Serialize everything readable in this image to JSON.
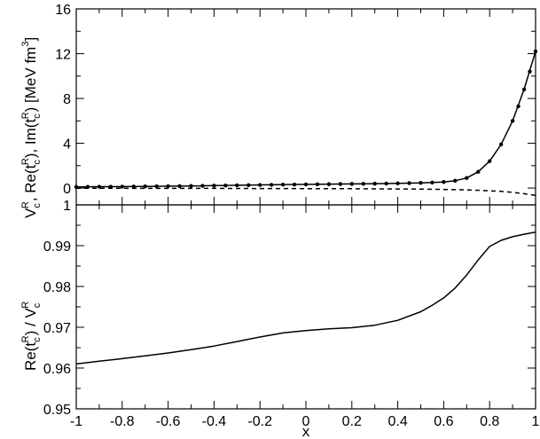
{
  "chart_data": [
    {
      "type": "line",
      "panel": "top",
      "ylabel": "V_c^R, Re(t_c^R), Im(t_c^R) [MeV fm^3]",
      "ylabel_parts": {
        "v": "V",
        "v_sub": "c",
        "v_sup": "R",
        "sep1": ", Re(t",
        "t1_sub": "c",
        "t1_sup": "R",
        "sep2": "), Im(t",
        "t2_sub": "c",
        "t2_sup": "R",
        "unit": ") [MeV fm",
        "unit_sup": "3",
        "close": "]"
      },
      "xlim": [
        -1,
        1
      ],
      "ylim": [
        -1.5,
        16
      ],
      "x_ticks": [
        -1,
        -0.8,
        -0.6,
        -0.4,
        -0.2,
        0,
        0.2,
        0.4,
        0.6,
        0.8,
        1
      ],
      "y_ticks": [
        0,
        4,
        8,
        12,
        16
      ],
      "y_tick_labels": [
        "0",
        "4",
        "8",
        "12",
        "16"
      ],
      "series": [
        {
          "style": "solid",
          "x": [
            -1,
            -0.9,
            -0.8,
            -0.7,
            -0.6,
            -0.5,
            -0.4,
            -0.3,
            -0.2,
            -0.1,
            0,
            0.1,
            0.2,
            0.3,
            0.4,
            0.5,
            0.6,
            0.65,
            0.7,
            0.75,
            0.8,
            0.85,
            0.9,
            0.95,
            1
          ],
          "y": [
            0.1,
            0.12,
            0.13,
            0.15,
            0.17,
            0.19,
            0.22,
            0.25,
            0.28,
            0.31,
            0.33,
            0.35,
            0.37,
            0.39,
            0.42,
            0.46,
            0.54,
            0.65,
            0.9,
            1.45,
            2.4,
            3.9,
            6.0,
            8.8,
            12.2
          ]
        },
        {
          "style": "dots",
          "x": [
            -1,
            -0.95,
            -0.9,
            -0.85,
            -0.8,
            -0.75,
            -0.7,
            -0.65,
            -0.6,
            -0.55,
            -0.5,
            -0.45,
            -0.4,
            -0.35,
            -0.3,
            -0.25,
            -0.2,
            -0.15,
            -0.1,
            -0.05,
            0,
            0.05,
            0.1,
            0.15,
            0.2,
            0.25,
            0.3,
            0.35,
            0.4,
            0.45,
            0.5,
            0.55,
            0.6,
            0.65,
            0.7,
            0.75,
            0.8,
            0.85,
            0.9,
            0.925,
            0.95,
            0.975,
            1
          ],
          "y": [
            0.1,
            0.11,
            0.12,
            0.12,
            0.13,
            0.14,
            0.15,
            0.16,
            0.17,
            0.18,
            0.19,
            0.2,
            0.22,
            0.23,
            0.25,
            0.26,
            0.28,
            0.29,
            0.31,
            0.32,
            0.33,
            0.34,
            0.35,
            0.36,
            0.37,
            0.38,
            0.39,
            0.4,
            0.42,
            0.44,
            0.46,
            0.49,
            0.54,
            0.65,
            0.9,
            1.45,
            2.4,
            3.9,
            6.0,
            7.3,
            8.8,
            10.4,
            12.2
          ]
        },
        {
          "style": "dashed",
          "x": [
            -1,
            -0.8,
            -0.6,
            -0.4,
            -0.2,
            0,
            0.2,
            0.4,
            0.5,
            0.6,
            0.7,
            0.8,
            0.85,
            0.9,
            0.95,
            1
          ],
          "y": [
            -0.02,
            -0.02,
            -0.03,
            -0.03,
            -0.04,
            -0.05,
            -0.06,
            -0.08,
            -0.09,
            -0.12,
            -0.16,
            -0.24,
            -0.3,
            -0.38,
            -0.5,
            -0.65
          ]
        }
      ]
    },
    {
      "type": "line",
      "panel": "bottom",
      "xlabel": "x",
      "ylabel": "Re(t_c^R) / V_c^R",
      "ylabel_parts": {
        "a": "Re(t",
        "a_sub": "c",
        "a_sup": "R",
        "b": ") / V",
        "b_sub": "c",
        "b_sup": "R"
      },
      "xlim": [
        -1,
        1
      ],
      "ylim": [
        0.95,
        1.0
      ],
      "x_ticks": [
        -1,
        -0.8,
        -0.6,
        -0.4,
        -0.2,
        0,
        0.2,
        0.4,
        0.6,
        0.8,
        1
      ],
      "x_tick_labels": [
        "-1",
        "-0.8",
        "-0.6",
        "-0.4",
        "-0.2",
        "0",
        "0.2",
        "0.4",
        "0.6",
        "0.8",
        "1"
      ],
      "y_ticks": [
        0.95,
        0.96,
        0.97,
        0.98,
        0.99,
        1.0
      ],
      "y_tick_labels": [
        "0.95",
        "0.96",
        "0.97",
        "0.98",
        "0.99",
        "1"
      ],
      "series": [
        {
          "style": "solid",
          "x": [
            -1,
            -0.9,
            -0.8,
            -0.7,
            -0.6,
            -0.5,
            -0.4,
            -0.3,
            -0.2,
            -0.1,
            0,
            0.1,
            0.2,
            0.3,
            0.4,
            0.5,
            0.55,
            0.6,
            0.65,
            0.7,
            0.75,
            0.8,
            0.85,
            0.9,
            0.95,
            1
          ],
          "y": [
            0.961,
            0.9617,
            0.9623,
            0.963,
            0.9637,
            0.9645,
            0.9654,
            0.9665,
            0.9676,
            0.9686,
            0.9692,
            0.9696,
            0.9699,
            0.9705,
            0.9717,
            0.9738,
            0.9754,
            0.9772,
            0.9796,
            0.9828,
            0.9865,
            0.9898,
            0.9913,
            0.9922,
            0.9928,
            0.9933
          ]
        }
      ]
    }
  ]
}
